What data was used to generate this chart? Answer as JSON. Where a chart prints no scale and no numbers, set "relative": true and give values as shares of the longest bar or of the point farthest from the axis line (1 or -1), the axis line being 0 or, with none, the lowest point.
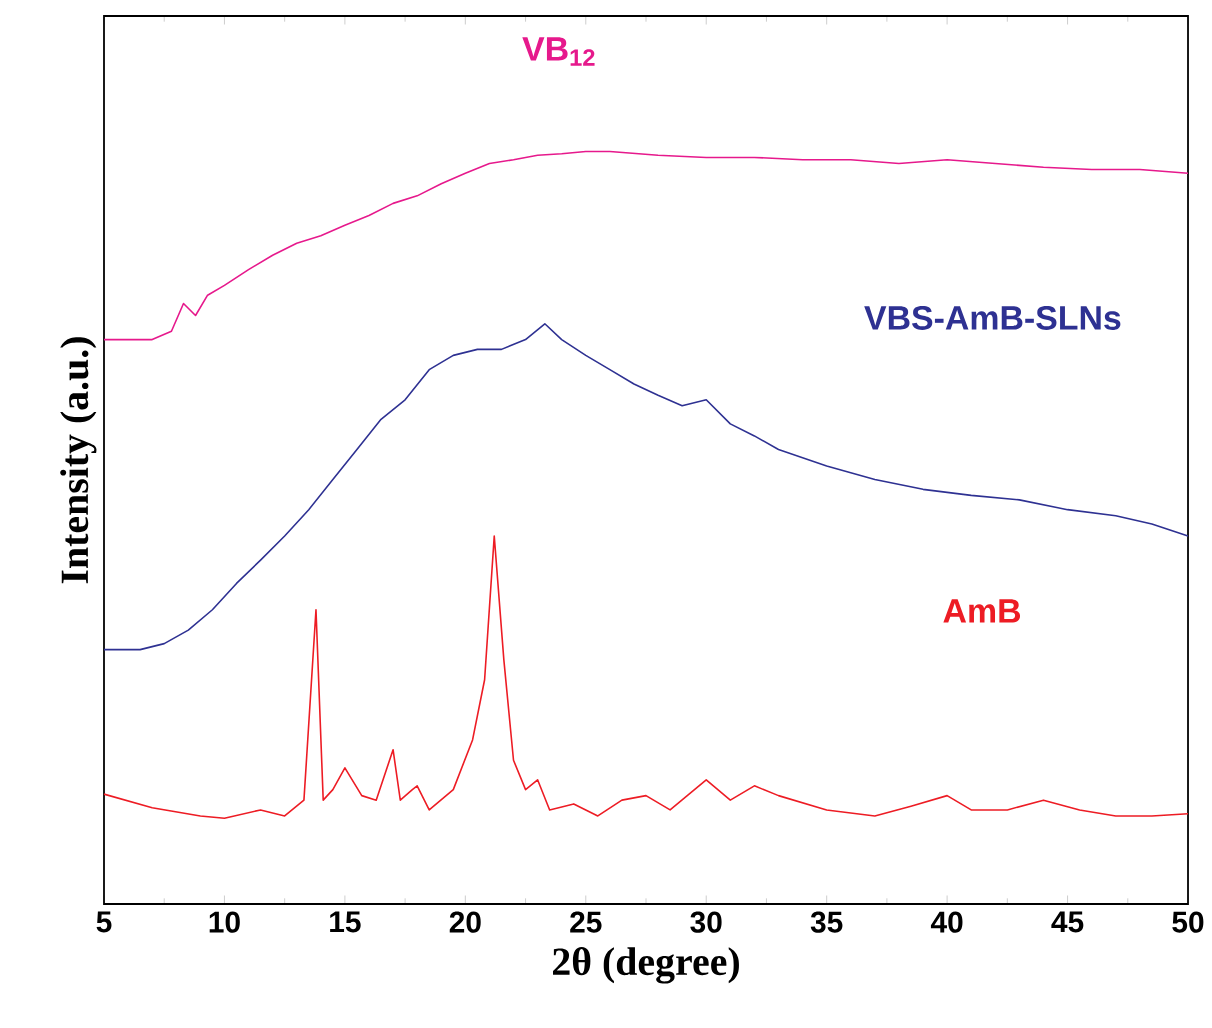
{
  "chart_data": {
    "type": "line",
    "relative": true,
    "xlabel": "2θ (degree)",
    "ylabel": "Intensity (a.u.)",
    "xlim": [
      5,
      50
    ],
    "xticks": [
      5,
      10,
      15,
      20,
      25,
      30,
      35,
      40,
      45,
      50
    ],
    "tick_labels": "x",
    "grid": false,
    "series": [
      {
        "name": "VB$_{12}$",
        "color": "#e6198c",
        "x": [
          5,
          7,
          7.8,
          8.3,
          8.8,
          9.3,
          10,
          11,
          12,
          13,
          14,
          15,
          16,
          17,
          18,
          19,
          20,
          21,
          22,
          23,
          24,
          25,
          26,
          28,
          30,
          32,
          34,
          36,
          38,
          40,
          42,
          44,
          46,
          48,
          50
        ],
        "values": [
          0.75,
          0.75,
          0.761,
          0.798,
          0.782,
          0.809,
          0.822,
          0.843,
          0.862,
          0.878,
          0.888,
          0.902,
          0.915,
          0.931,
          0.941,
          0.957,
          0.971,
          0.984,
          0.989,
          0.995,
          0.997,
          1.0,
          1.0,
          0.995,
          0.992,
          0.992,
          0.989,
          0.989,
          0.984,
          0.989,
          0.984,
          0.979,
          0.976,
          0.976,
          0.971
        ]
      },
      {
        "name": "VBS-AmB-SLNs",
        "color": "#2e3192",
        "x": [
          5,
          6.5,
          7.5,
          8.5,
          9.5,
          10.5,
          11.5,
          12.5,
          13.5,
          14.5,
          15.5,
          16.5,
          17.5,
          18.5,
          19.5,
          20.5,
          21.5,
          22.5,
          23.3,
          24,
          25,
          26,
          27,
          28,
          29,
          30,
          31,
          32,
          33,
          35,
          37,
          39,
          41,
          43,
          45,
          47,
          48.5,
          50
        ],
        "values": [
          0.338,
          0.338,
          0.346,
          0.364,
          0.391,
          0.426,
          0.457,
          0.489,
          0.524,
          0.564,
          0.604,
          0.644,
          0.67,
          0.71,
          0.729,
          0.737,
          0.737,
          0.75,
          0.771,
          0.75,
          0.729,
          0.71,
          0.691,
          0.676,
          0.662,
          0.67,
          0.638,
          0.622,
          0.604,
          0.582,
          0.564,
          0.551,
          0.543,
          0.537,
          0.524,
          0.516,
          0.505,
          0.489
        ]
      },
      {
        "name": "AmB",
        "color": "#ed1c24",
        "x": [
          5,
          7,
          9,
          10,
          11.5,
          12.5,
          13.3,
          13.8,
          14.1,
          14.5,
          15,
          15.7,
          16.3,
          17,
          17.3,
          17.8,
          18,
          18.5,
          19.5,
          20.3,
          20.8,
          21.2,
          21.6,
          22,
          22.5,
          23,
          23.5,
          24.5,
          25.5,
          26.5,
          27.5,
          28.5,
          30,
          31,
          32,
          33,
          35,
          37,
          38.5,
          40,
          41,
          42.5,
          44,
          45.5,
          47,
          48.5,
          50
        ],
        "values": [
          0.146,
          0.128,
          0.117,
          0.114,
          0.125,
          0.117,
          0.138,
          0.391,
          0.138,
          0.152,
          0.181,
          0.144,
          0.138,
          0.205,
          0.138,
          0.152,
          0.157,
          0.125,
          0.152,
          0.218,
          0.298,
          0.489,
          0.324,
          0.191,
          0.152,
          0.165,
          0.125,
          0.133,
          0.117,
          0.138,
          0.144,
          0.125,
          0.165,
          0.138,
          0.157,
          0.144,
          0.125,
          0.117,
          0.13,
          0.144,
          0.125,
          0.125,
          0.138,
          0.125,
          0.117,
          0.117,
          0.12
        ]
      }
    ]
  }
}
